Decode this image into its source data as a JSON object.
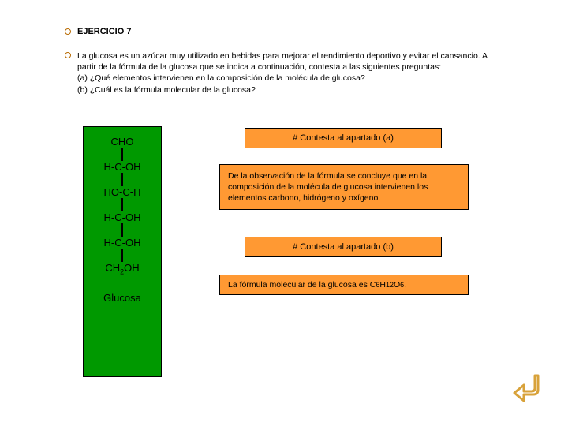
{
  "colors": {
    "structure_bg": "#009900",
    "answer_bg": "#ff9933",
    "border": "#000000",
    "text": "#000000",
    "dot_border": "#b86a00",
    "arrow": "#d8a23a"
  },
  "title": "EJERCICIO 7",
  "description": "La glucosa es un azúcar muy utilizado en bebidas para mejorar el rendimiento deportivo y evitar el cansancio. A partir de la fórmula de la glucosa que se indica a continuación, contesta a las siguientes preguntas:\n(a) ¿Qué elementos intervienen en la composición de la molécula de glucosa?\n(b) ¿Cuál es la fórmula molecular de la glucosa?",
  "structure": {
    "lines": [
      "CHO",
      "H-C-OH",
      "HO-C-H",
      "H-C-OH",
      "H-C-OH"
    ],
    "last_line_html": "CH<span class=\"sub\">2</span>OH",
    "label": "Glucosa"
  },
  "answers": {
    "a_header": "# Contesta al apartado (a)",
    "a_body": "De la observación de la fórmula se concluye que en la composición de la molécula de glucosa intervienen los elementos carbono, hidrógeno y oxígeno.",
    "b_header": "# Contesta al apartado (b)",
    "b_body_html": "La fórmula molecular de la glucosa es C<span class=\"sub\">6</span>H<span class=\"sub\">12</span>O<span class=\"sub\">6</span>."
  }
}
